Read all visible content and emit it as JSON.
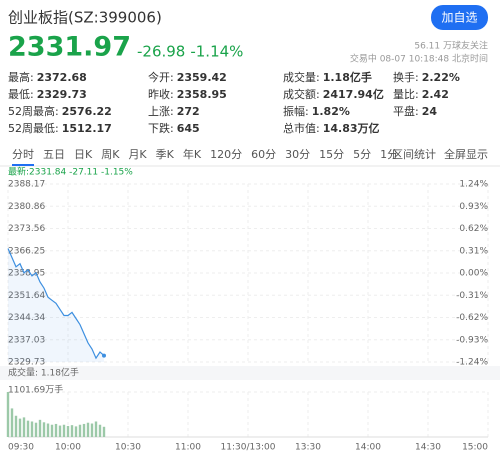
{
  "header": {
    "title": "创业板指(SZ:399006)",
    "button": "加自选",
    "price": "2331.97",
    "change": "-26.98",
    "change_pct": "-1.14%",
    "followers": "56.11 万球友关注",
    "status": "交易中 08-07 10:18:48 北京时间"
  },
  "stats": [
    [
      {
        "label": "最高:",
        "value": "2372.68",
        "color": "#e0322b"
      },
      {
        "label": "今开:",
        "value": "2359.42",
        "color": "#e0322b"
      },
      {
        "label": "成交量:",
        "value": "1.18亿手"
      },
      {
        "label": "换手:",
        "value": "2.22%"
      }
    ],
    [
      {
        "label": "最低:",
        "value": "2329.73",
        "color": "#1aa34a"
      },
      {
        "label": "昨收:",
        "value": "2358.95"
      },
      {
        "label": "成交额:",
        "value": "2417.94亿"
      },
      {
        "label": "量比:",
        "value": "2.42",
        "color": "#e0322b"
      }
    ],
    [
      {
        "label": "52周最高:",
        "value": "2576.22"
      },
      {
        "label": "上涨:",
        "value": "272"
      },
      {
        "label": "振幅:",
        "value": "1.82%"
      },
      {
        "label": "平盘:",
        "value": "24"
      }
    ],
    [
      {
        "label": "52周最低:",
        "value": "1512.17"
      },
      {
        "label": "下跌:",
        "value": "645"
      },
      {
        "label": "总市值:",
        "value": "14.83万亿"
      }
    ]
  ],
  "tabs": [
    "分时",
    "五日",
    "日K",
    "周K",
    "月K",
    "季K",
    "年K",
    "120分",
    "60分",
    "30分",
    "15分",
    "5分",
    "1分"
  ],
  "tab_links": [
    "区间统计",
    "全屏显示"
  ],
  "chart": {
    "type": "line",
    "latest": "最新:2331.84 -27.11 -1.15%",
    "x": [
      "09:30",
      "09:32",
      "09:34",
      "09:36",
      "09:38",
      "09:40",
      "09:42",
      "09:44",
      "09:46",
      "09:48",
      "09:50",
      "09:52",
      "09:54",
      "09:56",
      "09:58",
      "10:00",
      "10:02",
      "10:04",
      "10:06",
      "10:08",
      "10:10",
      "10:12",
      "10:14",
      "10:16",
      "10:18"
    ],
    "values": [
      2367,
      2364,
      2361,
      2362,
      2359,
      2360,
      2358,
      2359,
      2356,
      2354,
      2351,
      2350,
      2349,
      2347,
      2345,
      2345,
      2346,
      2344,
      2342,
      2339,
      2336,
      2334,
      2331,
      2333,
      2331.84
    ],
    "color": "#3d8fe0",
    "xticks": [
      "09:30",
      "10:00",
      "10:30",
      "11:00",
      "11:30/13:00",
      "13:30",
      "14:00",
      "14:30",
      "15:00"
    ],
    "ylim": [
      2329.73,
      2388.17
    ],
    "yticks": [
      2388.17,
      2380.86,
      2373.56,
      2366.25,
      2358.95,
      2351.64,
      2344.34,
      2337.03,
      2329.73
    ],
    "y2lim": [
      -1.24,
      1.24
    ],
    "y2ticks": [
      {
        "value": 1.24,
        "label": "1.24%"
      },
      {
        "value": 0.93,
        "label": "0.93%"
      },
      {
        "value": 0.62,
        "label": "0.62%"
      },
      {
        "value": 0.31,
        "label": "0.31%"
      },
      {
        "value": 0,
        "label": "0.00%"
      },
      {
        "value": -0.31,
        "label": "-0.31%"
      },
      {
        "value": -0.62,
        "label": "-0.62%"
      },
      {
        "value": -0.93,
        "label": "-0.93%"
      },
      {
        "value": -1.24,
        "label": "-1.24%"
      }
    ],
    "grid": true,
    "volume_label": "成交量: 1.18亿手",
    "volume": {
      "values": [
        1101.69,
        700,
        520,
        450,
        480,
        400,
        380,
        350,
        420,
        360,
        330,
        300,
        320,
        280,
        300,
        270,
        290,
        260,
        300,
        320,
        350,
        330,
        380,
        300,
        250
      ],
      "color": "#9cc9a8",
      "ylim": [
        0,
        1101.69
      ],
      "yticks": [
        {
          "value": 1101.69,
          "label": "1101.69万手"
        }
      ]
    }
  }
}
